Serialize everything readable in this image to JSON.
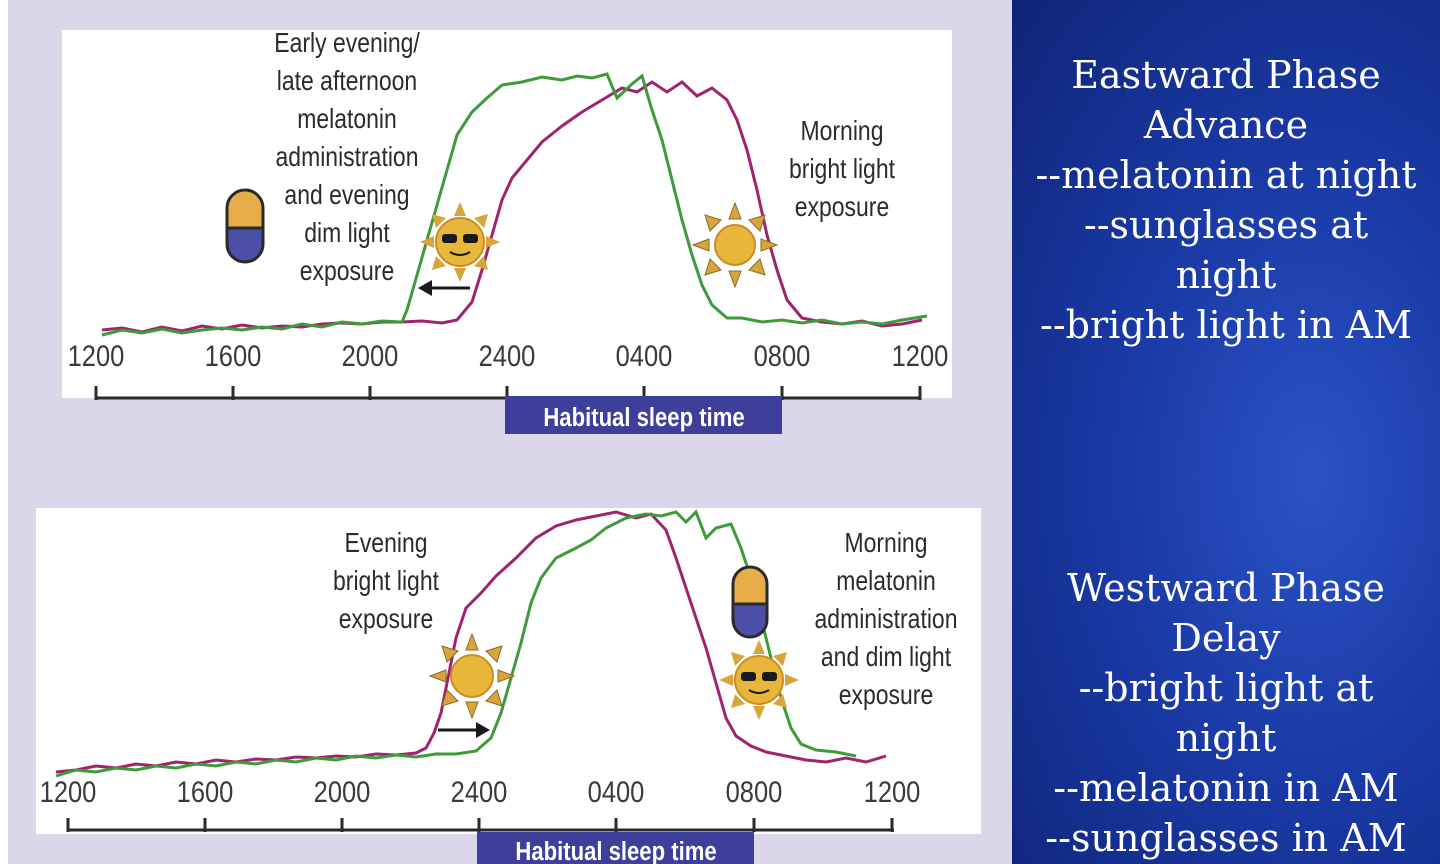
{
  "top_diagram": {
    "annotation_left": [
      "Early evening/",
      "late afternoon",
      "melatonin",
      "administration",
      "and evening",
      "dim light",
      "exposure"
    ],
    "annotation_right": [
      "Morning",
      "bright light",
      "exposure"
    ],
    "axis_ticks": [
      "1200",
      "1600",
      "2000",
      "2400",
      "0400",
      "0800",
      "1200"
    ],
    "sleep_label": "Habitual sleep time"
  },
  "bottom_diagram": {
    "annotation_left": [
      "Evening",
      "bright light",
      "exposure"
    ],
    "annotation_right": [
      "Morning",
      "melatonin",
      "administration",
      "and dim light",
      "exposure"
    ],
    "axis_ticks": [
      "1200",
      "1600",
      "2000",
      "2400",
      "0400",
      "0800",
      "1200"
    ],
    "sleep_label": "Habitual sleep time"
  },
  "right_panel": {
    "eastward": [
      "Eastward Phase",
      "Advance",
      "--melatonin at night",
      "--sunglasses at",
      "night",
      "--bright light in AM"
    ],
    "westward": [
      "Westward Phase",
      "Delay",
      "--bright light at",
      "night",
      "--melatonin in AM",
      "--sunglasses in AM"
    ]
  },
  "colors": {
    "shifted_curve": "#3f9a3a",
    "baseline_curve": "#a0236f",
    "sleep_label_bg": "#3d3f9a",
    "sun": "#e8b63a",
    "pill_top": "#e7ad48",
    "pill_bottom": "#4b4fa8",
    "slide_blue": "#1a3aa6"
  },
  "icons": [
    "pill-icon",
    "sunglasses-sun-icon",
    "sun-icon",
    "left-arrow-icon",
    "right-arrow-icon"
  ]
}
